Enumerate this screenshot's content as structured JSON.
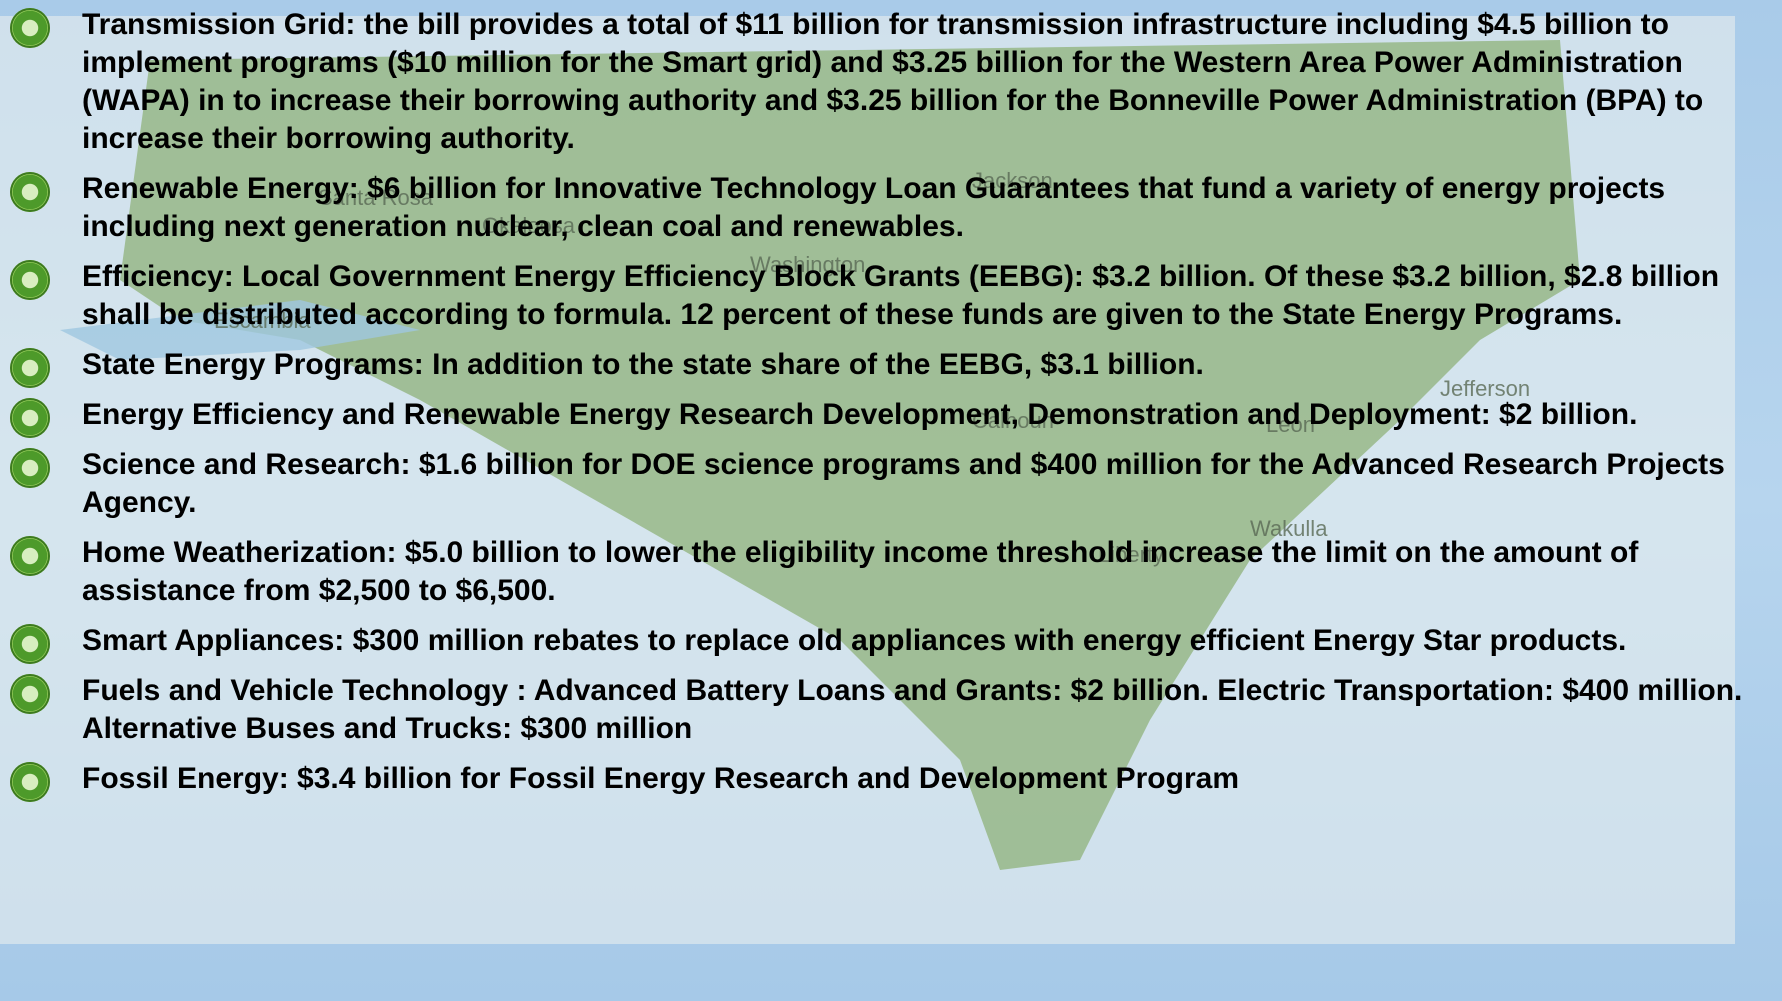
{
  "items": [
    "Transmission Grid: the bill provides a total of $11 billion for transmission infrastructure including $4.5 billion to implement programs ($10 million for the Smart grid) and $3.25 billion for the Western Area Power Administration (WAPA) in to increase their borrowing authority and $3.25 billion for the Bonneville Power Administration (BPA) to increase their borrowing authority.",
    "Renewable Energy: $6 billion for Innovative Technology Loan Guarantees that fund a variety of energy projects including next generation nuclear, clean coal and renewables.",
    "Efficiency:  Local Government Energy Efficiency Block Grants (EEBG): $3.2 billion. Of these $3.2 billion, $2.8 billion shall be distributed according to formula. 12 percent of these funds are given to the State Energy Programs.",
    "State Energy Programs:  In addition to the state share of the EEBG, $3.1 billion.",
    "Energy Efficiency and Renewable Energy Research Development, Demonstration and Deployment: $2 billion.",
    "Science and Research: $1.6 billion for DOE science programs and $400 million for the Advanced Research Projects Agency.",
    "Home Weatherization: $5.0 billion to lower the eligibility income threshold increase the limit on the amount of assistance from $2,500 to $6,500.",
    "Smart Appliances: $300 million rebates to replace old appliances with energy efficient Energy Star products.",
    "Fuels and Vehicle Technology : Advanced Battery Loans and Grants: $2 billion.  Electric Transportation: $400 million. Alternative Buses and Trucks: $300 million",
    "Fossil Energy: $3.4 billion for  Fossil Energy Research and Development Program"
  ],
  "map_labels": [
    "Santa Rosa",
    "Okaloosa",
    "Jackson",
    "Washington",
    "Escambia",
    "Calhoun",
    "Leon",
    "Liberty",
    "Jefferson",
    "Wakulla"
  ]
}
